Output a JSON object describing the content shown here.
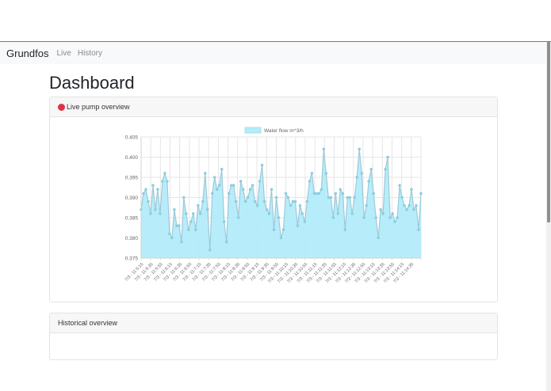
{
  "navbar": {
    "brand": "Grundfos",
    "links": [
      {
        "label": "Live"
      },
      {
        "label": "History"
      }
    ]
  },
  "page": {
    "title": "Dashboard"
  },
  "cards": {
    "live": {
      "title": "Live pump overview",
      "status_color": "#dc3545"
    },
    "history": {
      "title": "Historical overview"
    }
  },
  "chart_data": {
    "type": "line",
    "title": "",
    "legend": [
      "Water flow m^3/h"
    ],
    "legend_position": "top",
    "xlabel": "",
    "ylabel": "",
    "ylim": [
      0.375,
      0.405
    ],
    "yticks": [
      0.375,
      0.38,
      0.385,
      0.39,
      0.395,
      0.4,
      0.405
    ],
    "grid": true,
    "fill": true,
    "fill_color": "#b3ecfb",
    "line_color": "#9fc9d6",
    "x_tick_labels": [
      "7/3 - 11:5:15",
      "7/3 - 11:5:35",
      "7/3 - 11:5:55",
      "7/3 - 11:6:15",
      "7/3 - 11:6:35",
      "7/3 - 11:6:55",
      "7/3 - 11:7:15",
      "7/3 - 11:7:35",
      "7/3 - 11:7:55",
      "7/3 - 11:8:15",
      "7/3 - 11:8:35",
      "7/3 - 11:8:55",
      "7/3 - 11:9:15",
      "7/3 - 11:9:35",
      "7/3 - 11:9:55",
      "7/3 - 11:10:15",
      "7/3 - 11:10:35",
      "7/3 - 11:10:55",
      "7/3 - 11:11:15",
      "7/3 - 11:11:35",
      "7/3 - 11:11:55",
      "7/3 - 11:12:15",
      "7/3 - 11:12:35",
      "7/3 - 11:12:55",
      "7/3 - 11:13:15",
      "7/3 - 11:13:35",
      "7/3 - 11:13:55",
      "7/3 - 11:14:15",
      "7/3 - 11:14:35"
    ],
    "series": [
      {
        "name": "Water flow m^3/h",
        "values": [
          0.387,
          0.391,
          0.392,
          0.389,
          0.386,
          0.393,
          0.387,
          0.392,
          0.386,
          0.394,
          0.396,
          0.394,
          0.381,
          0.38,
          0.387,
          0.383,
          0.383,
          0.379,
          0.39,
          0.386,
          0.382,
          0.384,
          0.386,
          0.382,
          0.388,
          0.386,
          0.389,
          0.396,
          0.387,
          0.377,
          0.391,
          0.395,
          0.392,
          0.393,
          0.397,
          0.384,
          0.379,
          0.391,
          0.393,
          0.393,
          0.389,
          0.385,
          0.394,
          0.392,
          0.389,
          0.39,
          0.392,
          0.393,
          0.389,
          0.388,
          0.394,
          0.398,
          0.389,
          0.387,
          0.386,
          0.392,
          0.382,
          0.39,
          0.385,
          0.38,
          0.382,
          0.391,
          0.39,
          0.388,
          0.389,
          0.389,
          0.383,
          0.388,
          0.386,
          0.384,
          0.389,
          0.394,
          0.396,
          0.391,
          0.391,
          0.391,
          0.392,
          0.402,
          0.396,
          0.39,
          0.39,
          0.385,
          0.391,
          0.386,
          0.392,
          0.391,
          0.382,
          0.39,
          0.39,
          0.386,
          0.39,
          0.395,
          0.402,
          0.396,
          0.385,
          0.388,
          0.394,
          0.397,
          0.391,
          0.385,
          0.38,
          0.387,
          0.386,
          0.397,
          0.4,
          0.385,
          0.386,
          0.384,
          0.385,
          0.393,
          0.39,
          0.388,
          0.387,
          0.388,
          0.392,
          0.387,
          0.388,
          0.382,
          0.391
        ]
      }
    ]
  }
}
